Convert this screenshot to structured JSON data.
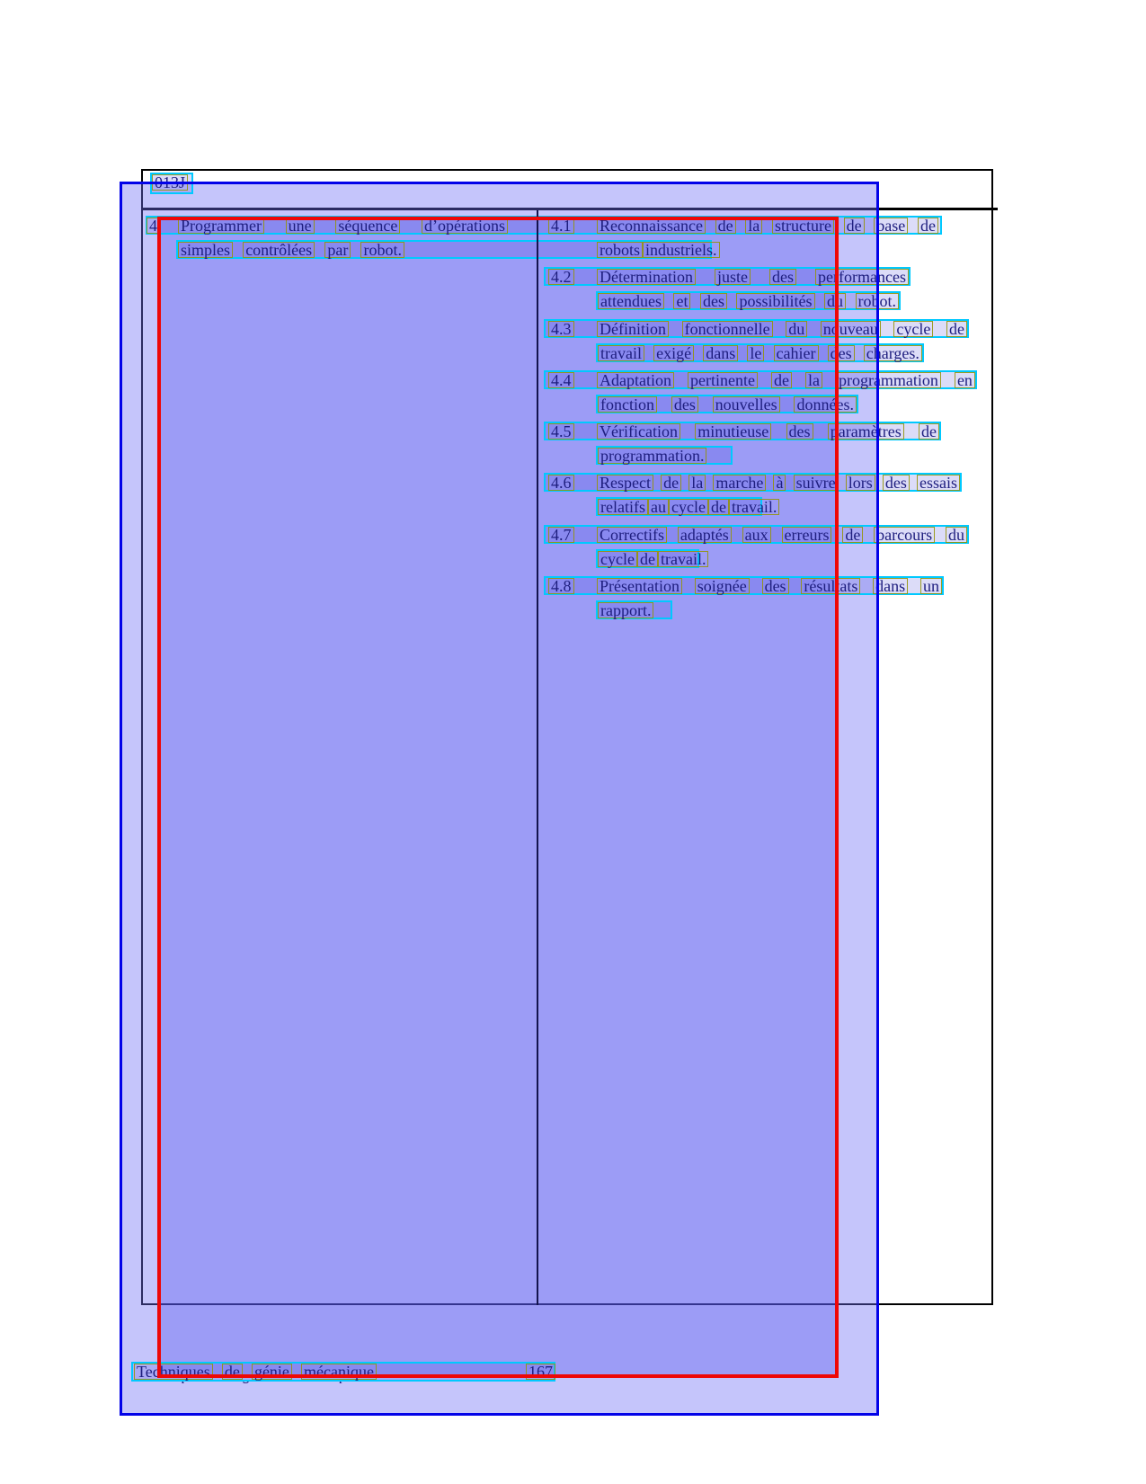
{
  "document": {
    "header_code": "013J",
    "competency": {
      "number": "4",
      "statement_lines": [
        "Programmer une séquence d’opérations",
        "simples contrôlées par robot."
      ]
    },
    "objectives": [
      {
        "number": "4.1",
        "lines": [
          "Reconnaissance de la structure de base de",
          "robots industriels."
        ]
      },
      {
        "number": "4.2",
        "lines": [
          "Détermination juste des performances",
          "attendues et des possibilités du robot."
        ]
      },
      {
        "number": "4.3",
        "lines": [
          "Définition fonctionnelle du nouveau cycle de",
          "travail exigé dans le cahier des charges."
        ]
      },
      {
        "number": "4.4",
        "lines": [
          "Adaptation pertinente de la programmation en",
          "fonction des nouvelles données."
        ]
      },
      {
        "number": "4.5",
        "lines": [
          "Vérification minutieuse des paramètres de",
          "programmation."
        ]
      },
      {
        "number": "4.6",
        "lines": [
          "Respect de la marche à suivre lors des essais",
          "relatifs au cycle de travail."
        ]
      },
      {
        "number": "4.7",
        "lines": [
          "Correctifs adaptés aux erreurs de parcours du",
          "cycle de travail."
        ]
      },
      {
        "number": "4.8",
        "lines": [
          "Présentation soignée des résultats dans un",
          "rapport."
        ]
      }
    ],
    "footer": {
      "title": "Techniques de génie mécanique",
      "page_number": "167"
    }
  },
  "annotation_colors": {
    "page_region_border": "#0202e8",
    "table_region_border": "#ee0707",
    "line_box_border": "#00c9ff",
    "word_box_border": "#94940a",
    "text_ink": "#1e1e7e"
  }
}
